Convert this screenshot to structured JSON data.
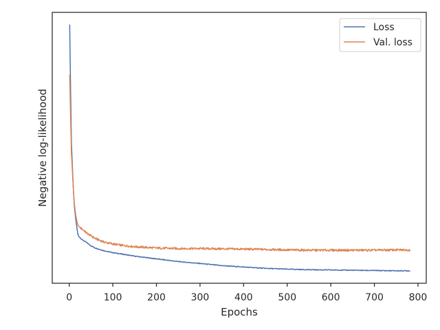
{
  "chart_data": {
    "type": "line",
    "xlabel": "Epochs",
    "ylabel": "Negative log-likelihood",
    "xlim": [
      -39,
      819
    ],
    "ylim": [
      0,
      1
    ],
    "y_ticks_shown": false,
    "x_ticks": [
      0,
      100,
      200,
      300,
      400,
      500,
      600,
      700,
      800
    ],
    "x_tick_labels": [
      "0",
      "100",
      "200",
      "300",
      "400",
      "500",
      "600",
      "700",
      "800"
    ],
    "grid": false,
    "legend_position": "top-right",
    "series": [
      {
        "name": "Loss",
        "color": "#4c72b0",
        "x": [
          1,
          3,
          5,
          8,
          10,
          12,
          15,
          18,
          20,
          22,
          25,
          30,
          40,
          50,
          60,
          80,
          100,
          120,
          150,
          200,
          250,
          300,
          350,
          400,
          450,
          500,
          550,
          600,
          650,
          700,
          750,
          782
        ],
        "y": [
          0.955,
          0.72,
          0.52,
          0.4,
          0.33,
          0.28,
          0.235,
          0.2,
          0.18,
          0.172,
          0.168,
          0.16,
          0.15,
          0.138,
          0.13,
          0.12,
          0.113,
          0.108,
          0.1,
          0.09,
          0.08,
          0.073,
          0.065,
          0.06,
          0.055,
          0.052,
          0.05,
          0.049,
          0.048,
          0.047,
          0.046,
          0.046
        ]
      },
      {
        "name": "Val. loss",
        "color": "#dd8452",
        "x": [
          1,
          3,
          5,
          8,
          10,
          12,
          15,
          18,
          20,
          22,
          25,
          30,
          40,
          50,
          60,
          80,
          100,
          120,
          150,
          200,
          250,
          300,
          350,
          400,
          450,
          500,
          550,
          600,
          650,
          700,
          750,
          782
        ],
        "y": [
          0.77,
          0.62,
          0.48,
          0.39,
          0.33,
          0.29,
          0.25,
          0.225,
          0.215,
          0.21,
          0.205,
          0.2,
          0.185,
          0.175,
          0.165,
          0.152,
          0.145,
          0.14,
          0.135,
          0.13,
          0.128,
          0.128,
          0.127,
          0.126,
          0.125,
          0.123,
          0.122,
          0.122,
          0.122,
          0.122,
          0.123,
          0.123
        ]
      }
    ]
  }
}
